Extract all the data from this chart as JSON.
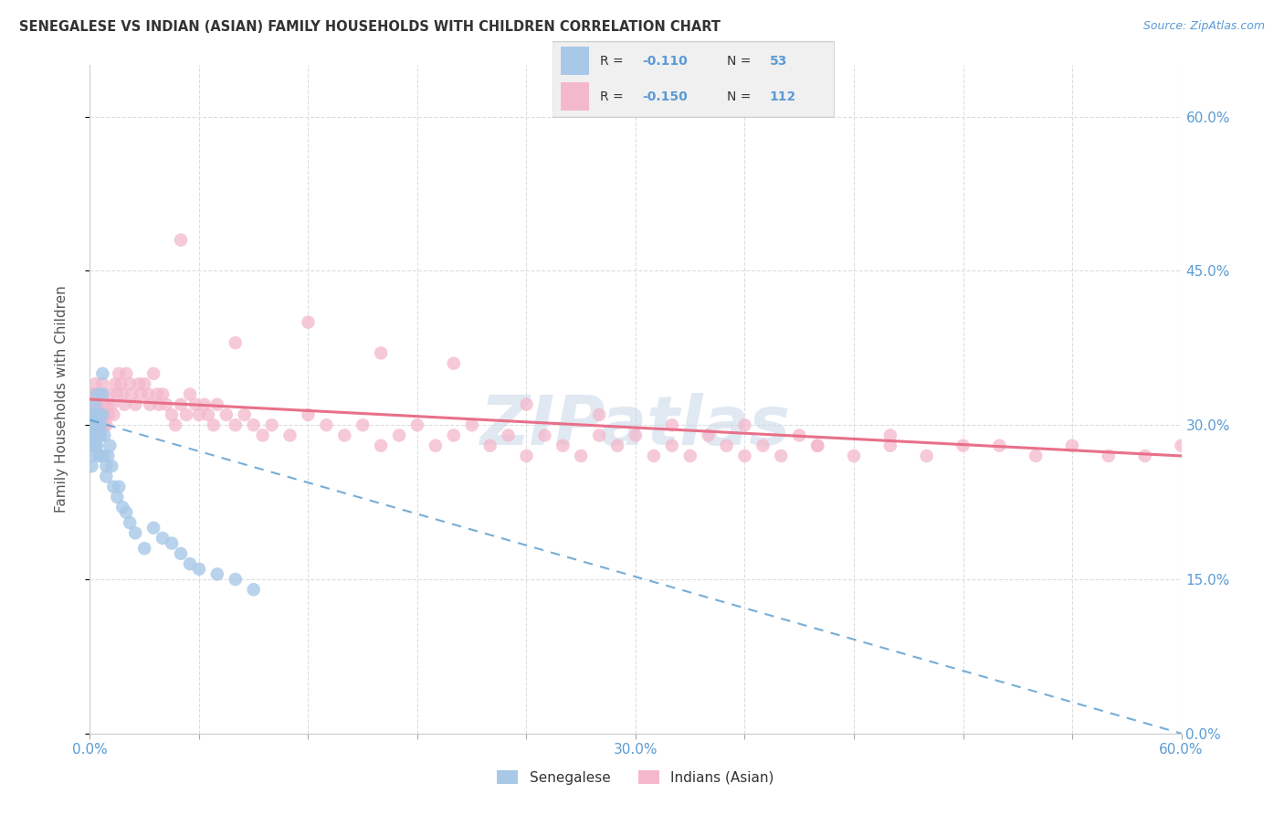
{
  "title": "SENEGALESE VS INDIAN (ASIAN) FAMILY HOUSEHOLDS WITH CHILDREN CORRELATION CHART",
  "source": "Source: ZipAtlas.com",
  "ylabel": "Family Households with Children",
  "bottom_legend_1": "Senegalese",
  "bottom_legend_2": "Indians (Asian)",
  "blue_dot_color": "#a8c8e8",
  "pink_dot_color": "#f4b8cc",
  "blue_line_color": "#5599cc",
  "pink_line_color": "#e8708a",
  "watermark_color": "#c8d8e8",
  "axis_label_color": "#5b9bd5",
  "title_color": "#333333",
  "bg_color": "#ffffff",
  "grid_color": "#dddddd",
  "legend_box_color": "#f0f0f0",
  "legend_border_color": "#cccccc",
  "senegalese_x": [
    0.001,
    0.001,
    0.001,
    0.001,
    0.001,
    0.002,
    0.002,
    0.002,
    0.002,
    0.003,
    0.003,
    0.003,
    0.003,
    0.003,
    0.004,
    0.004,
    0.004,
    0.004,
    0.005,
    0.005,
    0.005,
    0.005,
    0.006,
    0.006,
    0.006,
    0.007,
    0.007,
    0.007,
    0.008,
    0.008,
    0.009,
    0.009,
    0.01,
    0.011,
    0.012,
    0.013,
    0.015,
    0.016,
    0.018,
    0.02,
    0.022,
    0.025,
    0.03,
    0.035,
    0.04,
    0.045,
    0.05,
    0.055,
    0.06,
    0.07,
    0.08,
    0.09
  ],
  "senegalese_y": [
    0.3,
    0.29,
    0.28,
    0.27,
    0.26,
    0.31,
    0.3,
    0.29,
    0.28,
    0.32,
    0.31,
    0.3,
    0.29,
    0.28,
    0.33,
    0.31,
    0.3,
    0.28,
    0.31,
    0.3,
    0.29,
    0.27,
    0.3,
    0.29,
    0.27,
    0.35,
    0.33,
    0.31,
    0.29,
    0.27,
    0.26,
    0.25,
    0.27,
    0.28,
    0.26,
    0.24,
    0.23,
    0.24,
    0.22,
    0.215,
    0.205,
    0.195,
    0.18,
    0.2,
    0.19,
    0.185,
    0.175,
    0.165,
    0.16,
    0.155,
    0.15,
    0.14
  ],
  "indians_x": [
    0.001,
    0.001,
    0.002,
    0.002,
    0.003,
    0.003,
    0.003,
    0.004,
    0.004,
    0.005,
    0.005,
    0.005,
    0.006,
    0.006,
    0.007,
    0.007,
    0.008,
    0.008,
    0.009,
    0.01,
    0.01,
    0.011,
    0.012,
    0.013,
    0.014,
    0.015,
    0.016,
    0.017,
    0.018,
    0.019,
    0.02,
    0.022,
    0.023,
    0.025,
    0.027,
    0.028,
    0.03,
    0.032,
    0.033,
    0.035,
    0.037,
    0.038,
    0.04,
    0.042,
    0.045,
    0.047,
    0.05,
    0.053,
    0.055,
    0.058,
    0.06,
    0.063,
    0.065,
    0.068,
    0.07,
    0.075,
    0.08,
    0.085,
    0.09,
    0.095,
    0.1,
    0.11,
    0.12,
    0.13,
    0.14,
    0.15,
    0.16,
    0.17,
    0.18,
    0.19,
    0.2,
    0.21,
    0.22,
    0.23,
    0.24,
    0.25,
    0.26,
    0.27,
    0.28,
    0.29,
    0.3,
    0.31,
    0.32,
    0.33,
    0.34,
    0.35,
    0.36,
    0.37,
    0.38,
    0.39,
    0.4,
    0.42,
    0.44,
    0.46,
    0.48,
    0.5,
    0.52,
    0.54,
    0.56,
    0.58,
    0.6,
    0.05,
    0.08,
    0.12,
    0.16,
    0.2,
    0.24,
    0.28,
    0.32,
    0.36,
    0.4,
    0.44
  ],
  "indians_y": [
    0.33,
    0.31,
    0.32,
    0.3,
    0.34,
    0.33,
    0.31,
    0.32,
    0.3,
    0.31,
    0.3,
    0.29,
    0.33,
    0.31,
    0.34,
    0.32,
    0.31,
    0.3,
    0.3,
    0.32,
    0.31,
    0.33,
    0.32,
    0.31,
    0.34,
    0.33,
    0.35,
    0.34,
    0.33,
    0.32,
    0.35,
    0.34,
    0.33,
    0.32,
    0.34,
    0.33,
    0.34,
    0.33,
    0.32,
    0.35,
    0.33,
    0.32,
    0.33,
    0.32,
    0.31,
    0.3,
    0.32,
    0.31,
    0.33,
    0.32,
    0.31,
    0.32,
    0.31,
    0.3,
    0.32,
    0.31,
    0.3,
    0.31,
    0.3,
    0.29,
    0.3,
    0.29,
    0.31,
    0.3,
    0.29,
    0.3,
    0.28,
    0.29,
    0.3,
    0.28,
    0.29,
    0.3,
    0.28,
    0.29,
    0.27,
    0.29,
    0.28,
    0.27,
    0.29,
    0.28,
    0.29,
    0.27,
    0.28,
    0.27,
    0.29,
    0.28,
    0.27,
    0.28,
    0.27,
    0.29,
    0.28,
    0.27,
    0.28,
    0.27,
    0.28,
    0.28,
    0.27,
    0.28,
    0.27,
    0.27,
    0.28,
    0.48,
    0.38,
    0.4,
    0.37,
    0.36,
    0.32,
    0.31,
    0.3,
    0.3,
    0.28,
    0.29
  ],
  "sen_trend_x0": 0.0,
  "sen_trend_x1": 0.6,
  "sen_trend_y0": 0.305,
  "sen_trend_y1": 0.0,
  "ind_trend_x0": 0.0,
  "ind_trend_x1": 0.6,
  "ind_trend_y0": 0.325,
  "ind_trend_y1": 0.27,
  "xlim": [
    0.0,
    0.6
  ],
  "ylim": [
    0.0,
    0.65
  ],
  "xticks": [
    0.0,
    0.06,
    0.12,
    0.18,
    0.24,
    0.3,
    0.36,
    0.42,
    0.48,
    0.54,
    0.6
  ],
  "xticklabels": [
    "0.0%",
    "",
    "",
    "",
    "",
    "30.0%",
    "",
    "",
    "",
    "",
    "60.0%"
  ],
  "yticks": [
    0.0,
    0.15,
    0.3,
    0.45,
    0.6
  ],
  "yticklabels_right": [
    "0.0%",
    "15.0%",
    "30.0%",
    "45.0%",
    "60.0%"
  ]
}
